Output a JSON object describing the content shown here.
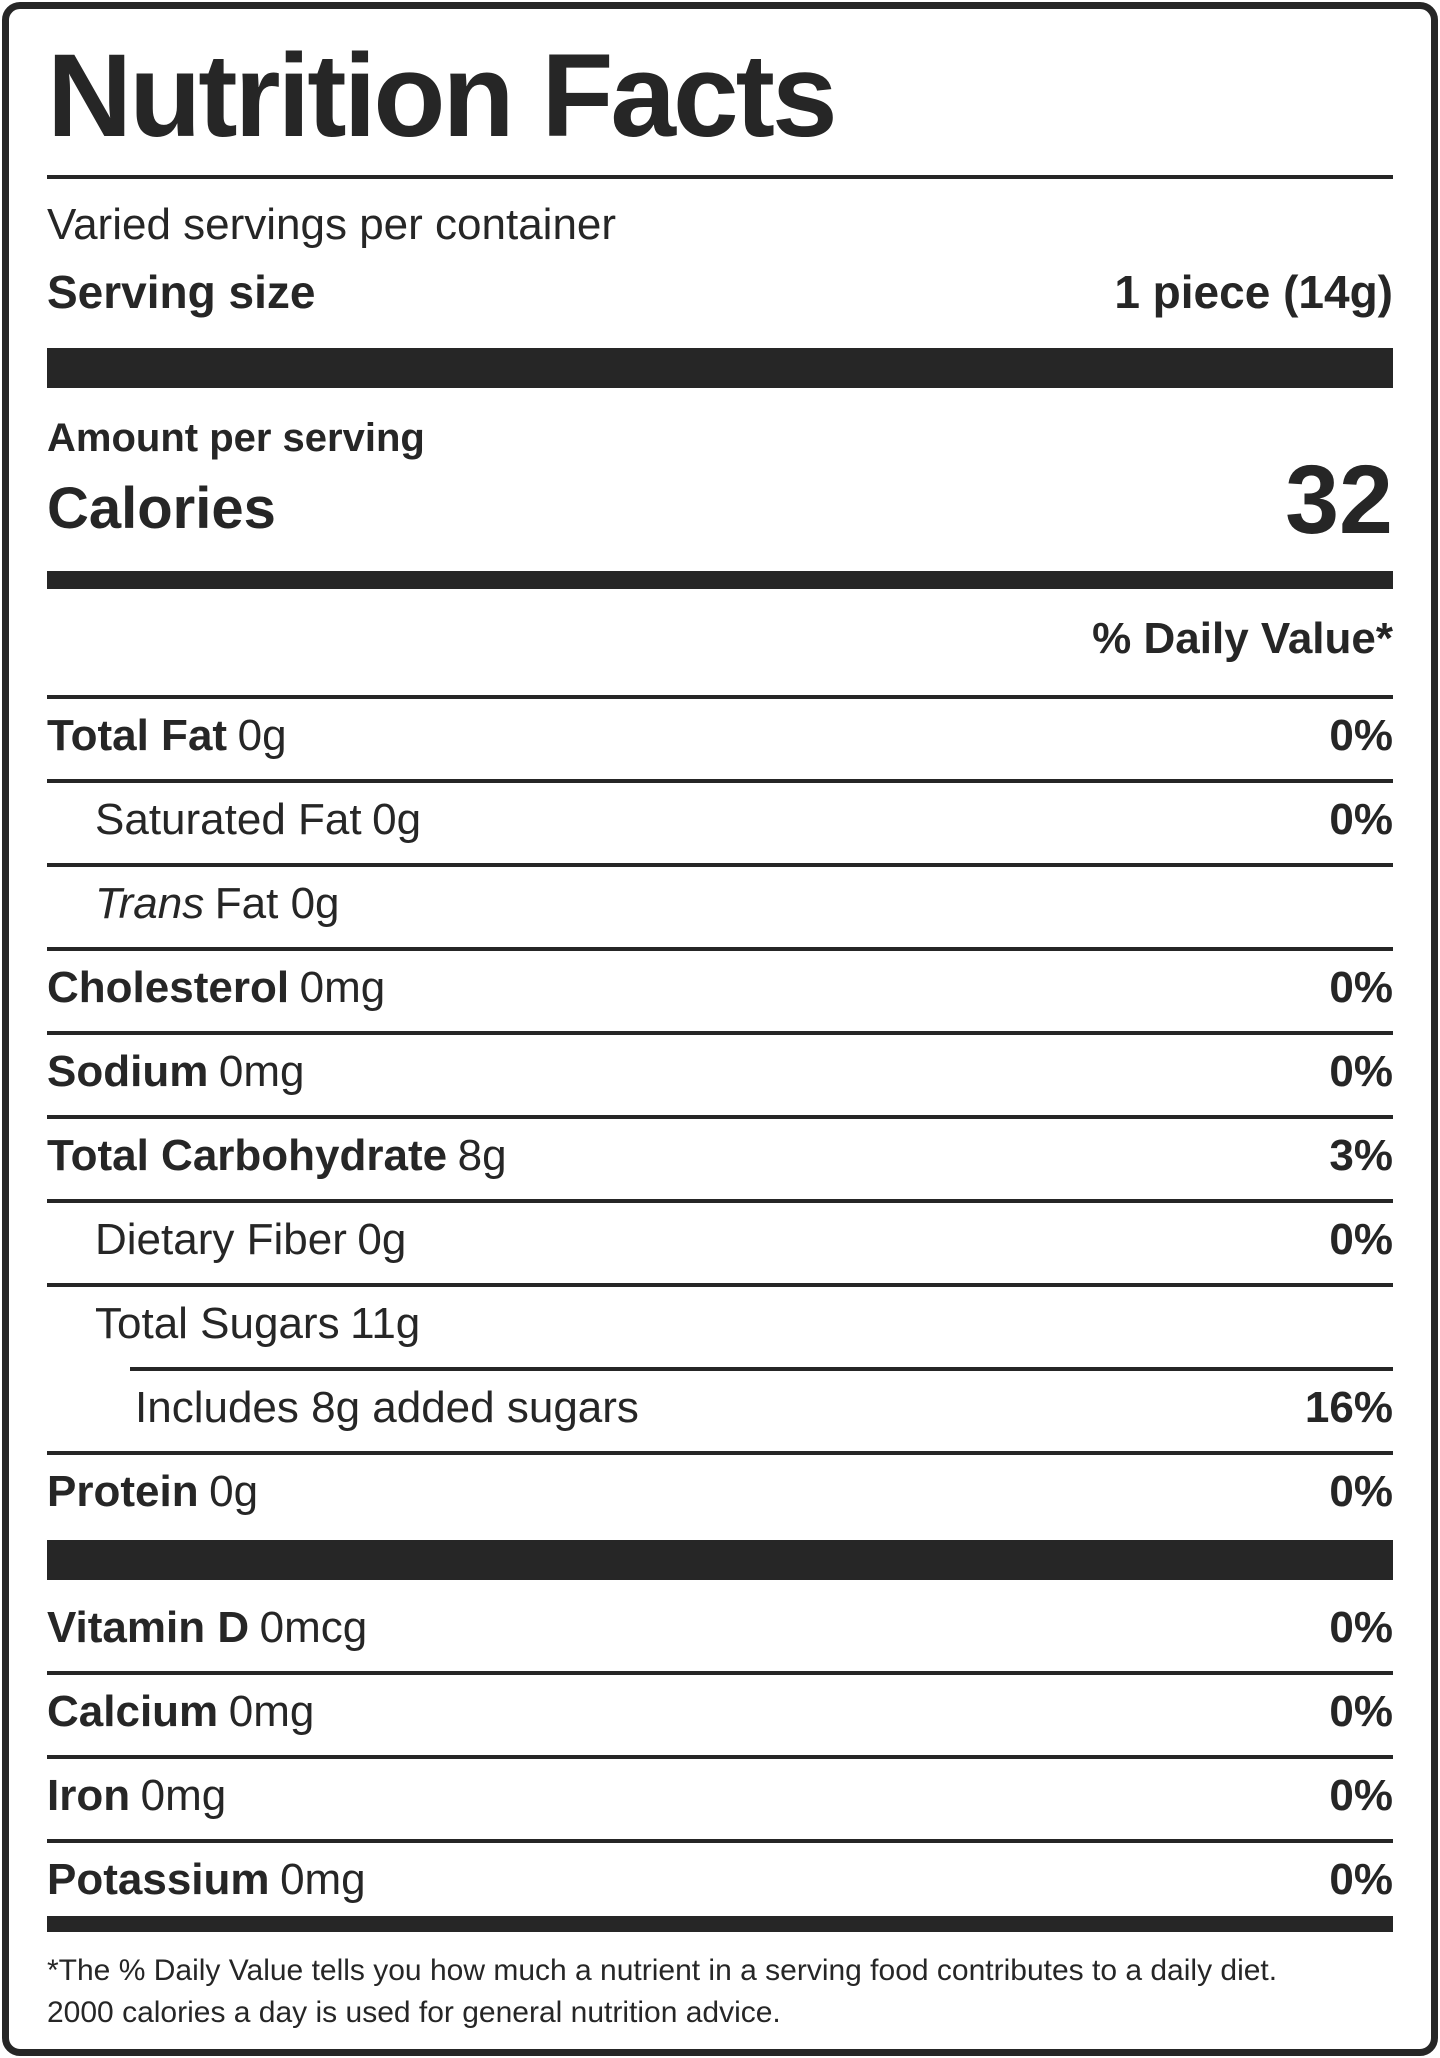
{
  "label": {
    "title": "Nutrition Facts",
    "servings_per_container": "Varied servings per container",
    "serving_size_label": "Serving size",
    "serving_size_value": "1 piece (14g)",
    "amount_per_serving_label": "Amount per serving",
    "calories_label": "Calories",
    "calories_value": "32",
    "daily_value_header": "% Daily Value*",
    "nutrients": [
      {
        "name": "Total Fat",
        "amount": "0g",
        "dv": "0%"
      },
      {
        "name": "Saturated Fat",
        "amount": "0g",
        "dv": "0%"
      },
      {
        "name": "Trans",
        "amount": "Fat 0g",
        "dv": ""
      },
      {
        "name": "Cholesterol",
        "amount": "0mg",
        "dv": "0%"
      },
      {
        "name": "Sodium",
        "amount": "0mg",
        "dv": "0%"
      },
      {
        "name": "Total Carbohydrate",
        "amount": "8g",
        "dv": "3%"
      },
      {
        "name": "Dietary Fiber",
        "amount": "0g",
        "dv": "0%"
      },
      {
        "name": "Total Sugars",
        "amount": "11g",
        "dv": ""
      },
      {
        "name": "Includes 8g added sugars",
        "amount": "",
        "dv": "16%"
      },
      {
        "name": "Protein",
        "amount": "0g",
        "dv": "0%"
      }
    ],
    "micronutrients": [
      {
        "name": "Vitamin D",
        "amount": "0mcg",
        "dv": "0%"
      },
      {
        "name": "Calcium",
        "amount": "0mg",
        "dv": "0%"
      },
      {
        "name": "Iron",
        "amount": "0mg",
        "dv": "0%"
      },
      {
        "name": "Potassium",
        "amount": "0mg",
        "dv": "0%"
      }
    ],
    "footnote_line1": "*The % Daily Value tells you how much a nutrient in a serving food contributes to a daily diet.",
    "footnote_line2": "2000 calories a day is used for general nutrition advice.",
    "colors": {
      "ink": "#262626",
      "background": "#ffffff"
    }
  }
}
